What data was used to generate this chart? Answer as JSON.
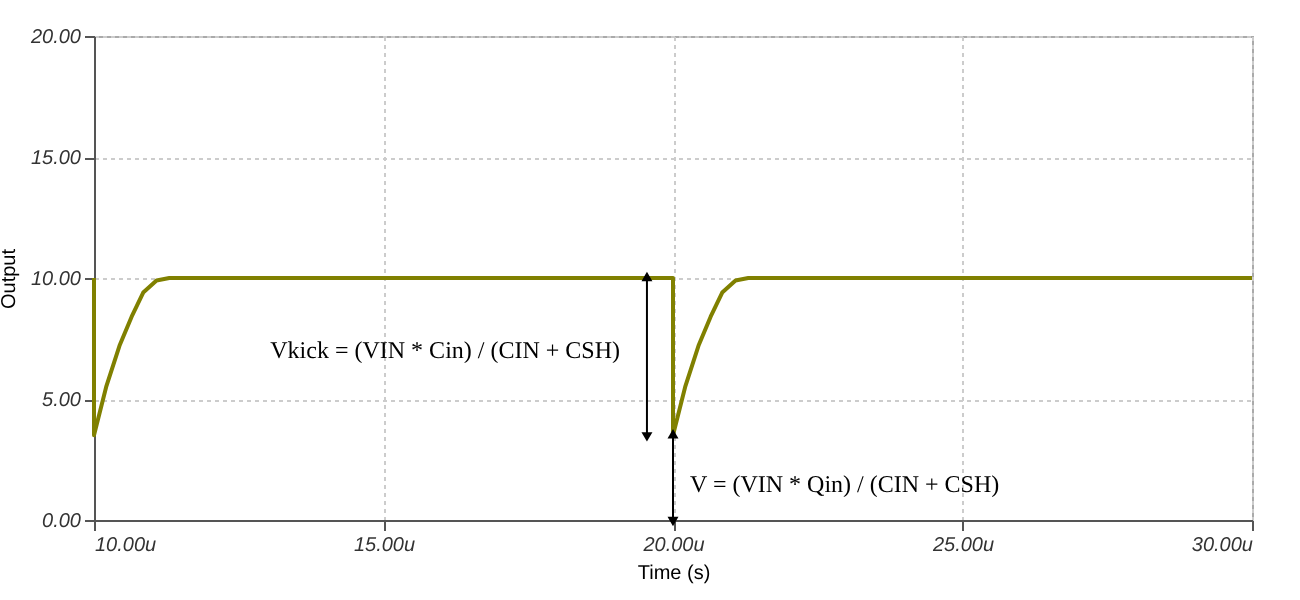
{
  "chart_data": {
    "type": "line",
    "xlabel": "Time (s)",
    "ylabel": "Output",
    "x": [
      10,
      10,
      10.21,
      10.44,
      10.65,
      10.85,
      11.08,
      11.3,
      20,
      20,
      20.21,
      20.44,
      20.65,
      20.85,
      21.08,
      21.3,
      30
    ],
    "series": [
      {
        "color": "#808000",
        "values": [
          10,
          3.5,
          5.5,
          7.2,
          8.4,
          9.4,
          9.9,
          10,
          10,
          3.5,
          5.5,
          7.2,
          8.4,
          9.4,
          9.9,
          10,
          10
        ]
      }
    ],
    "xlim": [
      10,
      30
    ],
    "ylim": [
      0,
      20
    ],
    "xticks": [
      {
        "value": 10,
        "label": "10.00u"
      },
      {
        "value": 15,
        "label": "15.00u"
      },
      {
        "value": 20,
        "label": "20.00u"
      },
      {
        "value": 25,
        "label": "25.00u"
      },
      {
        "value": 30,
        "label": "30.00u"
      }
    ],
    "yticks": [
      {
        "value": 0,
        "label": "0.00"
      },
      {
        "value": 5,
        "label": "5.00"
      },
      {
        "value": 10,
        "label": "10.00"
      },
      {
        "value": 15,
        "label": "15.00"
      },
      {
        "value": 20,
        "label": "20.00"
      }
    ],
    "grid": true,
    "line_style": "solid",
    "marker": "none",
    "annotations": [
      "Vkick = (VIN * Cin) / (CIN + CSH)",
      "V = (VIN * Qin) / (CIN + CSH)"
    ]
  }
}
